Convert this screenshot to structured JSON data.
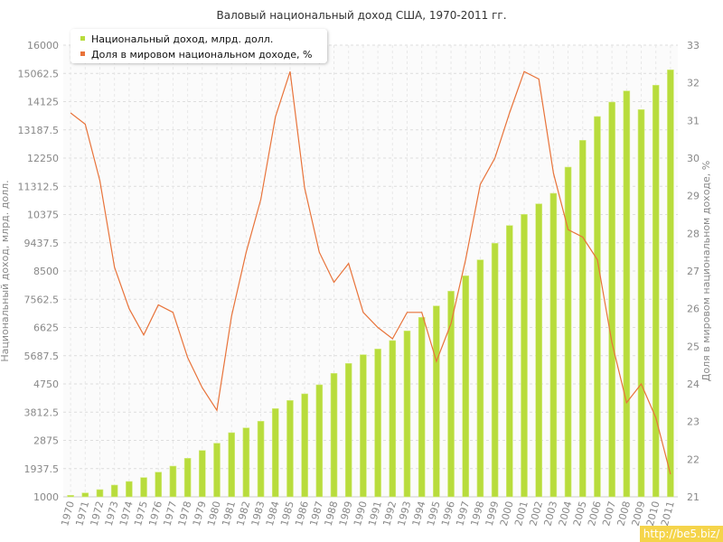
{
  "chart_data": {
    "type": "bar+line",
    "title": "Валовый национальный доход США, 1970-2011 гг.",
    "ylabel_left": "Национальный доход, млрд. долл.",
    "ylabel_right": "Доля в мировом национальном доходе, %",
    "ylim_left": [
      1000,
      16000
    ],
    "ylim_right": [
      21,
      33
    ],
    "yticks_left": [
      "1000",
      "1937.5",
      "2875",
      "3812.5",
      "4750",
      "5687.5",
      "6625",
      "7562.5",
      "8500",
      "9437.5",
      "10375",
      "11312.5",
      "12250",
      "13187.5",
      "14125",
      "15062.5",
      "16000"
    ],
    "yticks_right": [
      "21",
      "22",
      "23",
      "24",
      "25",
      "26",
      "27",
      "28",
      "29",
      "30",
      "31",
      "32",
      "33"
    ],
    "categories": [
      "1970",
      "1971",
      "1972",
      "1973",
      "1974",
      "1975",
      "1976",
      "1977",
      "1978",
      "1979",
      "1980",
      "1981",
      "1982",
      "1983",
      "1984",
      "1985",
      "1986",
      "1987",
      "1988",
      "1989",
      "1990",
      "1991",
      "1992",
      "1993",
      "1994",
      "1995",
      "1996",
      "1997",
      "1998",
      "1999",
      "2000",
      "2001",
      "2002",
      "2003",
      "2004",
      "2005",
      "2006",
      "2007",
      "2008",
      "2009",
      "2010",
      "2011"
    ],
    "series": [
      {
        "name": "Национальный доход, млрд. долл.",
        "type": "bar",
        "axis": "left",
        "color": "#b8dc3c",
        "values": [
          1050,
          1130,
          1240,
          1390,
          1510,
          1640,
          1820,
          2020,
          2280,
          2540,
          2780,
          3130,
          3290,
          3510,
          3930,
          4200,
          4420,
          4720,
          5100,
          5430,
          5720,
          5910,
          6190,
          6510,
          6960,
          7340,
          7830,
          8340,
          8870,
          9420,
          10010,
          10380,
          10730,
          11080,
          11950,
          12840,
          13630,
          14110,
          14480,
          13860,
          14670,
          15180
        ]
      },
      {
        "name": "Доля в мировом национальном доходе, %",
        "type": "line",
        "axis": "right",
        "color": "#e8733a",
        "values": [
          31.2,
          30.9,
          29.4,
          27.1,
          26.0,
          25.3,
          26.1,
          25.9,
          24.7,
          23.9,
          23.3,
          25.8,
          27.5,
          28.9,
          31.1,
          32.3,
          29.2,
          27.5,
          26.7,
          27.2,
          25.9,
          25.5,
          25.2,
          25.9,
          25.9,
          24.6,
          25.6,
          27.3,
          29.3,
          30.0,
          31.2,
          32.3,
          32.1,
          29.6,
          28.1,
          27.9,
          27.3,
          25.1,
          23.5,
          24.0,
          23.1,
          21.6
        ]
      }
    ],
    "grid": true,
    "legend": "top-left"
  },
  "watermark": "http://be5.biz/"
}
